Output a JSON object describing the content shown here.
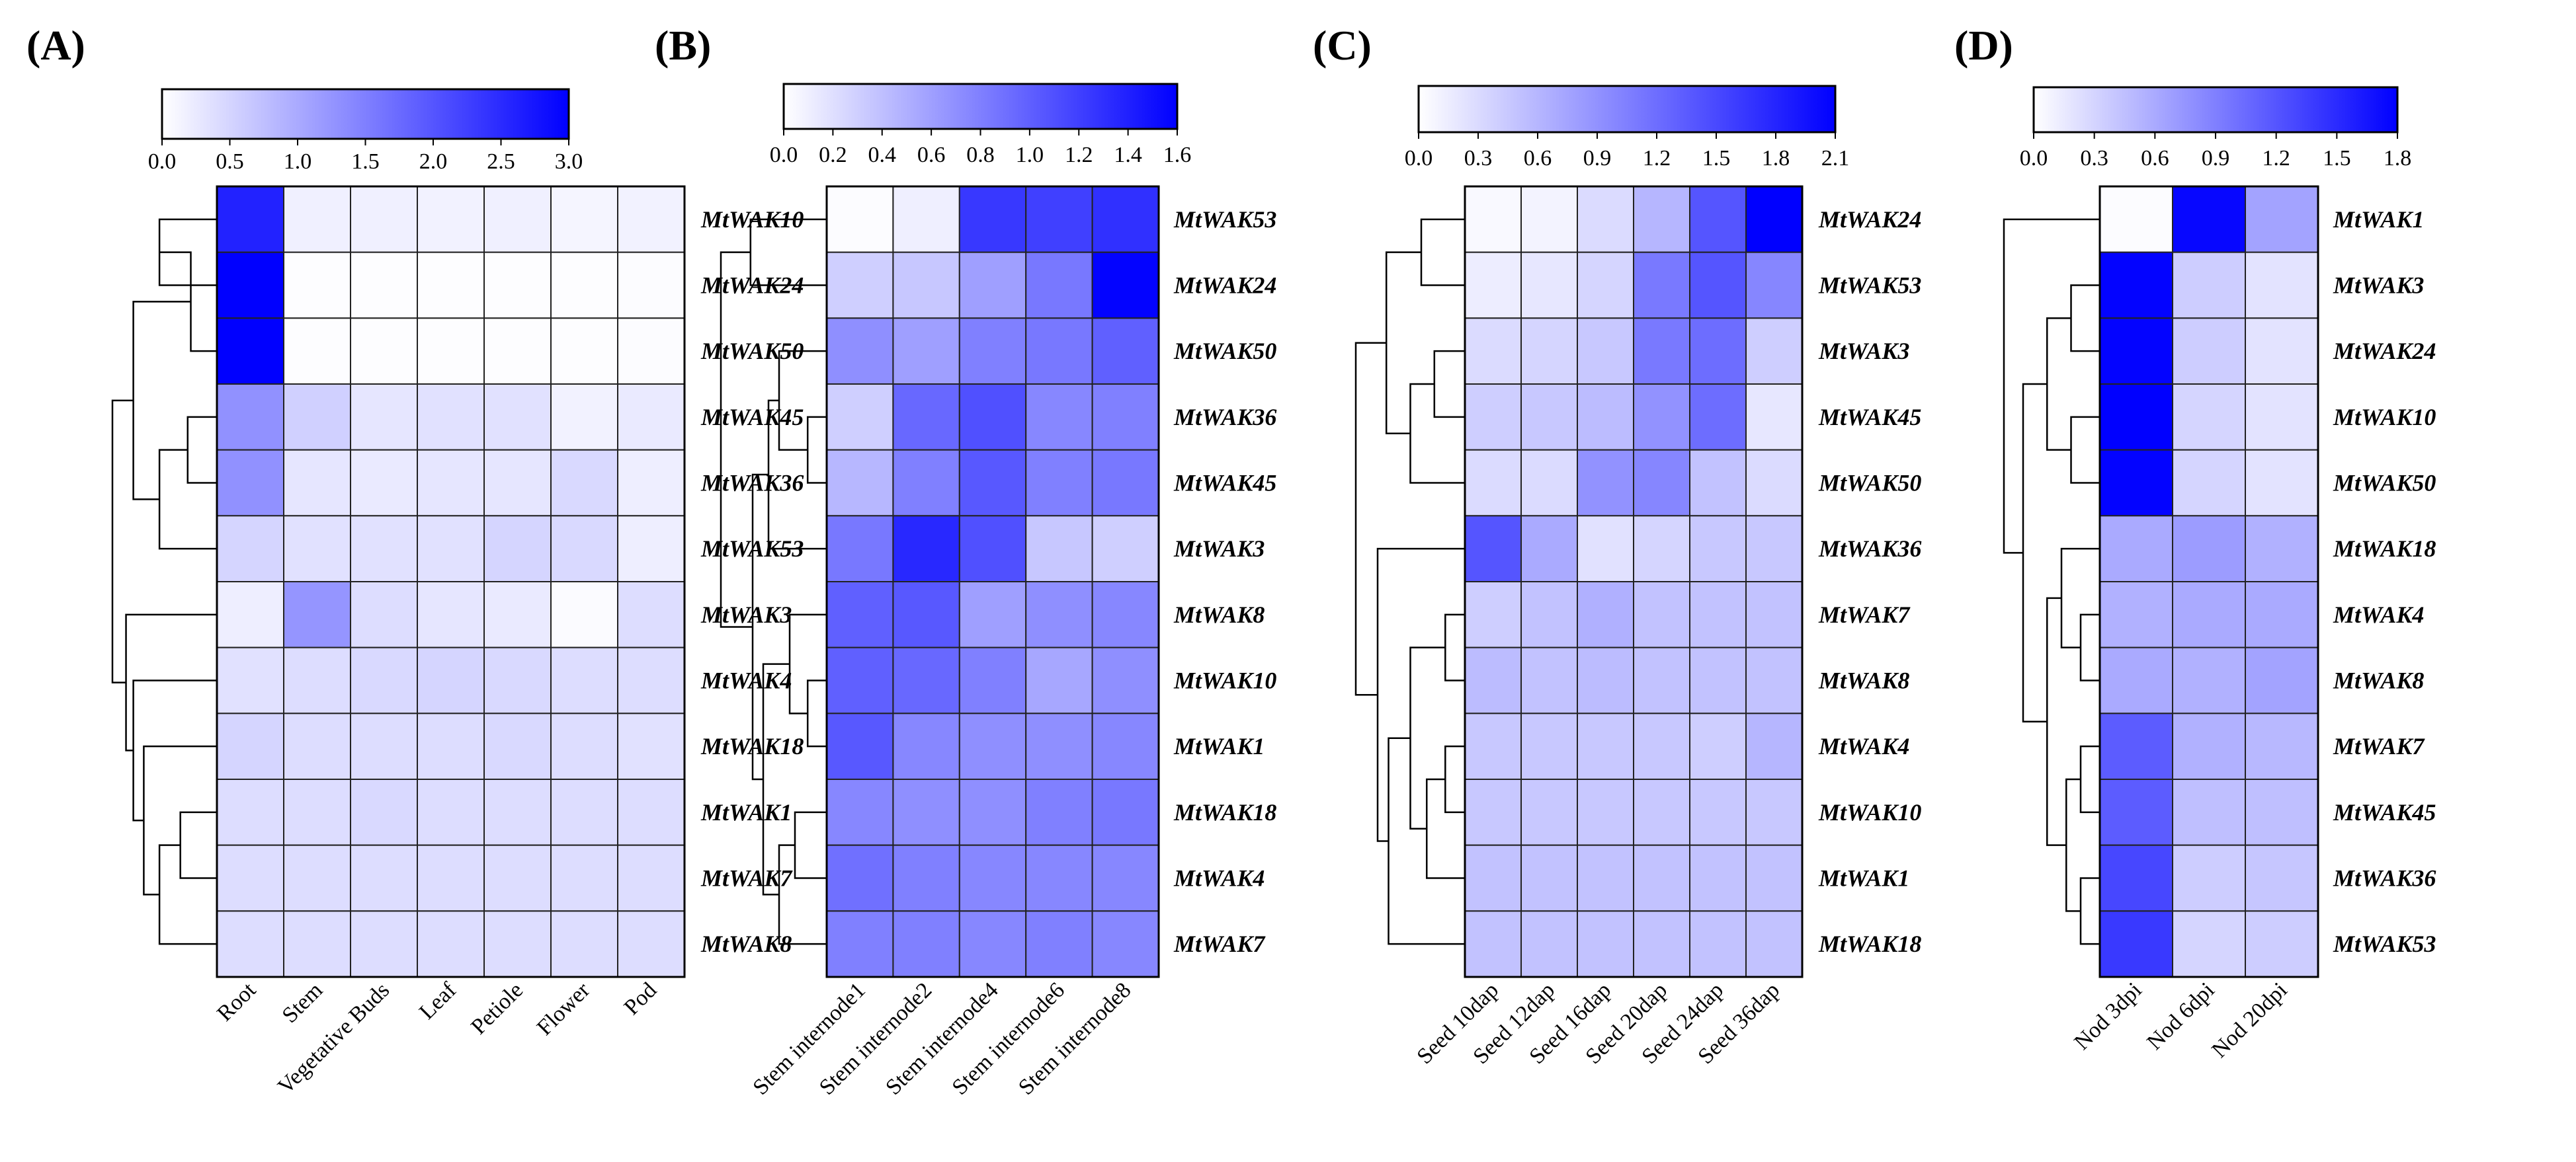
{
  "chart_data": [
    {
      "type": "heatmap",
      "panel_label": "(A)",
      "colormap": [
        "#ffffff",
        "#0000ff"
      ],
      "colorbar": {
        "min": 0.0,
        "max": 3.0,
        "ticks": [
          "0.0",
          "0.5",
          "1.0",
          "1.5",
          "2.0",
          "2.5",
          "3.0"
        ]
      },
      "columns": [
        "Root",
        "Stem",
        "Vegetative Buds",
        "Leaf",
        "Petiole",
        "Flower",
        "Pod"
      ],
      "rows": [
        "MtWAK10",
        "MtWAK24",
        "MtWAK50",
        "MtWAK45",
        "MtWAK36",
        "MtWAK53",
        "MtWAK3",
        "MtWAK4",
        "MtWAK18",
        "MtWAK1",
        "MtWAK7",
        "MtWAK8"
      ],
      "values": [
        [
          2.6,
          0.18,
          0.18,
          0.15,
          0.18,
          0.12,
          0.15
        ],
        [
          3.0,
          0.02,
          0.02,
          0.02,
          0.02,
          0.02,
          0.03
        ],
        [
          3.0,
          0.02,
          0.02,
          0.02,
          0.02,
          0.02,
          0.03
        ],
        [
          1.3,
          0.55,
          0.3,
          0.35,
          0.35,
          0.15,
          0.25
        ],
        [
          1.3,
          0.3,
          0.25,
          0.3,
          0.3,
          0.45,
          0.2
        ],
        [
          0.5,
          0.35,
          0.35,
          0.35,
          0.5,
          0.45,
          0.2
        ],
        [
          0.2,
          1.25,
          0.4,
          0.3,
          0.25,
          0.05,
          0.4
        ],
        [
          0.35,
          0.4,
          0.45,
          0.5,
          0.45,
          0.4,
          0.4
        ],
        [
          0.5,
          0.4,
          0.4,
          0.4,
          0.45,
          0.4,
          0.35
        ],
        [
          0.4,
          0.4,
          0.45,
          0.4,
          0.4,
          0.4,
          0.4
        ],
        [
          0.4,
          0.4,
          0.4,
          0.4,
          0.4,
          0.4,
          0.4
        ],
        [
          0.4,
          0.4,
          0.4,
          0.4,
          0.4,
          0.4,
          0.4
        ]
      ]
    },
    {
      "type": "heatmap",
      "panel_label": "(B)",
      "colormap": [
        "#ffffff",
        "#0000ff"
      ],
      "colorbar": {
        "min": 0.0,
        "max": 1.6,
        "ticks": [
          "0.0",
          "0.2",
          "0.4",
          "0.6",
          "0.8",
          "1.0",
          "1.2",
          "1.4",
          "1.6"
        ]
      },
      "columns": [
        "Stem internode1",
        "Stem internode2",
        "Stem internode4",
        "Stem internode6",
        "Stem internode8"
      ],
      "rows": [
        "MtWAK53",
        "MtWAK24",
        "MtWAK50",
        "MtWAK36",
        "MtWAK45",
        "MtWAK3",
        "MtWAK8",
        "MtWAK10",
        "MtWAK1",
        "MtWAK18",
        "MtWAK4",
        "MtWAK7"
      ],
      "values": [
        [
          0.02,
          0.1,
          1.25,
          1.2,
          1.3
        ],
        [
          0.3,
          0.35,
          0.6,
          0.85,
          1.58
        ],
        [
          0.7,
          0.6,
          0.8,
          0.85,
          1.0
        ],
        [
          0.3,
          0.95,
          1.1,
          0.75,
          0.8
        ],
        [
          0.45,
          0.8,
          1.05,
          0.8,
          0.85
        ],
        [
          0.85,
          1.35,
          1.1,
          0.35,
          0.3
        ],
        [
          1.0,
          1.05,
          0.6,
          0.7,
          0.75
        ],
        [
          1.0,
          0.95,
          0.8,
          0.55,
          0.7
        ],
        [
          1.05,
          0.75,
          0.7,
          0.7,
          0.75
        ],
        [
          0.75,
          0.7,
          0.7,
          0.8,
          0.85
        ],
        [
          0.9,
          0.8,
          0.75,
          0.75,
          0.75
        ],
        [
          0.8,
          0.8,
          0.75,
          0.8,
          0.75
        ]
      ]
    },
    {
      "type": "heatmap",
      "panel_label": "(C)",
      "colormap": [
        "#ffffff",
        "#0000ff"
      ],
      "colorbar": {
        "min": 0.0,
        "max": 2.1,
        "ticks": [
          "0.0",
          "0.3",
          "0.6",
          "0.9",
          "1.2",
          "1.5",
          "1.8",
          "2.1"
        ]
      },
      "columns": [
        "Seed 10dap",
        "Seed 12dap",
        "Seed 16dap",
        "Seed 20dap",
        "Seed 24dap",
        "Seed 36dap"
      ],
      "rows": [
        "MtWAK24",
        "MtWAK53",
        "MtWAK3",
        "MtWAK45",
        "MtWAK50",
        "MtWAK36",
        "MtWAK7",
        "MtWAK8",
        "MtWAK4",
        "MtWAK10",
        "MtWAK1",
        "MtWAK18"
      ],
      "values": [
        [
          0.05,
          0.1,
          0.3,
          0.6,
          1.4,
          2.1
        ],
        [
          0.15,
          0.2,
          0.35,
          1.1,
          1.4,
          1.0
        ],
        [
          0.3,
          0.35,
          0.45,
          1.1,
          1.2,
          0.4
        ],
        [
          0.4,
          0.45,
          0.55,
          0.9,
          1.2,
          0.2
        ],
        [
          0.3,
          0.3,
          0.9,
          1.0,
          0.5,
          0.3
        ],
        [
          1.4,
          0.7,
          0.25,
          0.35,
          0.45,
          0.45
        ],
        [
          0.4,
          0.5,
          0.65,
          0.5,
          0.5,
          0.5
        ],
        [
          0.55,
          0.5,
          0.55,
          0.5,
          0.5,
          0.5
        ],
        [
          0.45,
          0.45,
          0.45,
          0.45,
          0.4,
          0.6
        ],
        [
          0.45,
          0.45,
          0.45,
          0.45,
          0.45,
          0.45
        ],
        [
          0.5,
          0.5,
          0.5,
          0.5,
          0.5,
          0.5
        ],
        [
          0.5,
          0.5,
          0.5,
          0.5,
          0.5,
          0.5
        ]
      ]
    },
    {
      "type": "heatmap",
      "panel_label": "(D)",
      "colormap": [
        "#ffffff",
        "#0000ff"
      ],
      "colorbar": {
        "min": 0.0,
        "max": 1.8,
        "ticks": [
          "0.0",
          "0.3",
          "0.6",
          "0.9",
          "1.2",
          "1.5",
          "1.8"
        ]
      },
      "columns": [
        "Nod 3dpi",
        "Nod 6dpi",
        "Nod 20dpi"
      ],
      "rows": [
        "MtWAK1",
        "MtWAK3",
        "MtWAK24",
        "MtWAK10",
        "MtWAK50",
        "MtWAK18",
        "MtWAK4",
        "MtWAK8",
        "MtWAK7",
        "MtWAK45",
        "MtWAK36",
        "MtWAK53"
      ],
      "values": [
        [
          0.02,
          1.75,
          0.65
        ],
        [
          1.78,
          0.35,
          0.2
        ],
        [
          1.78,
          0.35,
          0.2
        ],
        [
          1.8,
          0.3,
          0.2
        ],
        [
          1.78,
          0.3,
          0.2
        ],
        [
          0.6,
          0.7,
          0.55
        ],
        [
          0.55,
          0.6,
          0.6
        ],
        [
          0.6,
          0.55,
          0.65
        ],
        [
          1.15,
          0.55,
          0.5
        ],
        [
          1.15,
          0.45,
          0.45
        ],
        [
          1.3,
          0.35,
          0.4
        ],
        [
          1.4,
          0.3,
          0.35
        ]
      ]
    }
  ]
}
